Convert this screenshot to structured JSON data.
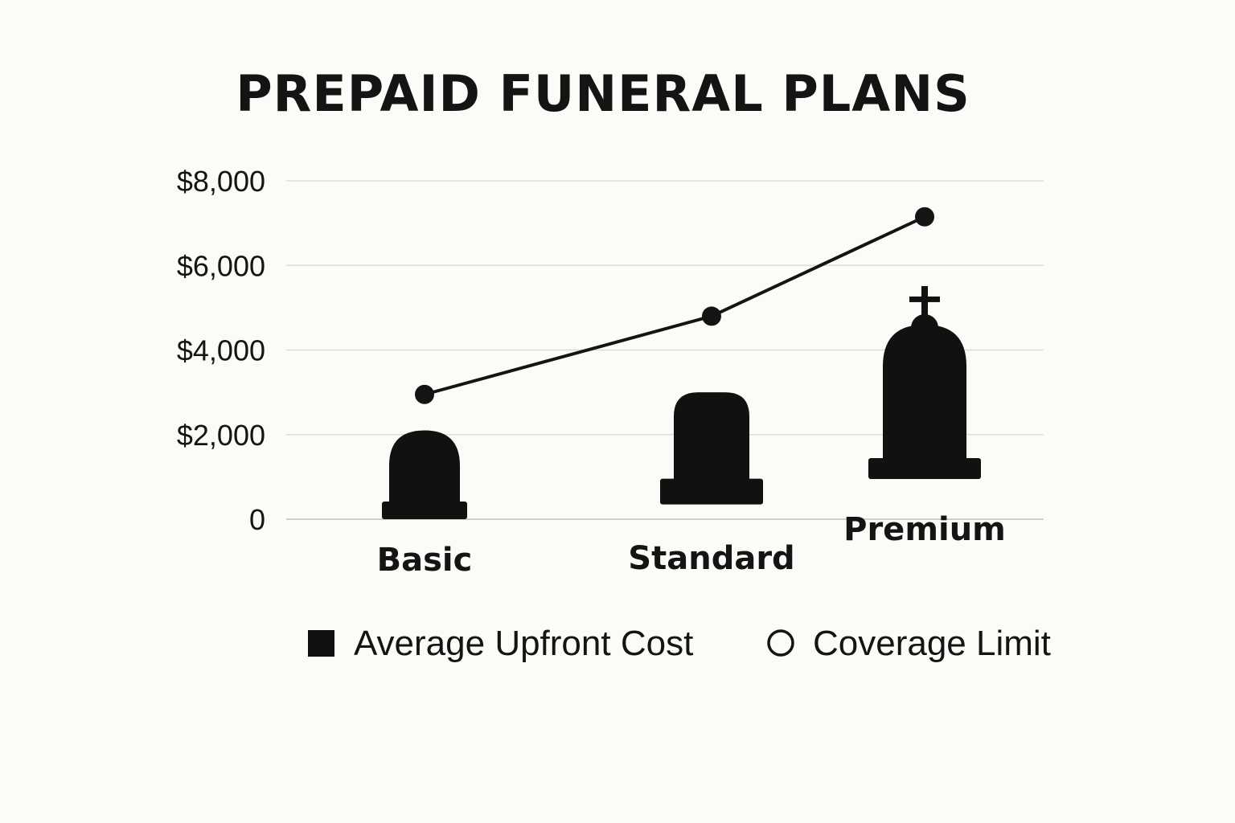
{
  "chart_data": {
    "type": "bar",
    "title": "PREPAID FUNERAL PLANS",
    "categories": [
      "Basic",
      "Standard",
      "Premium"
    ],
    "yticks": [
      "0",
      "$2,000",
      "$4,000",
      "$6,000",
      "$8,000"
    ],
    "ylim": [
      0,
      8000
    ],
    "grid": true,
    "legend_placement": "bottom",
    "series": [
      {
        "name": "Average Upfront Cost",
        "mark": "headstone",
        "legend_icon": "filled-square-icon",
        "values": [
          2100,
          3000,
          4600
        ]
      },
      {
        "name": "Coverage Limit",
        "mark": "line-with-dots",
        "legend_icon": "hollow-circle-icon",
        "values": [
          2950,
          4800,
          7150
        ]
      }
    ],
    "colors": {
      "background": "#fcfbf7",
      "ink": "#141414",
      "grid": "#dcdcd8"
    }
  }
}
